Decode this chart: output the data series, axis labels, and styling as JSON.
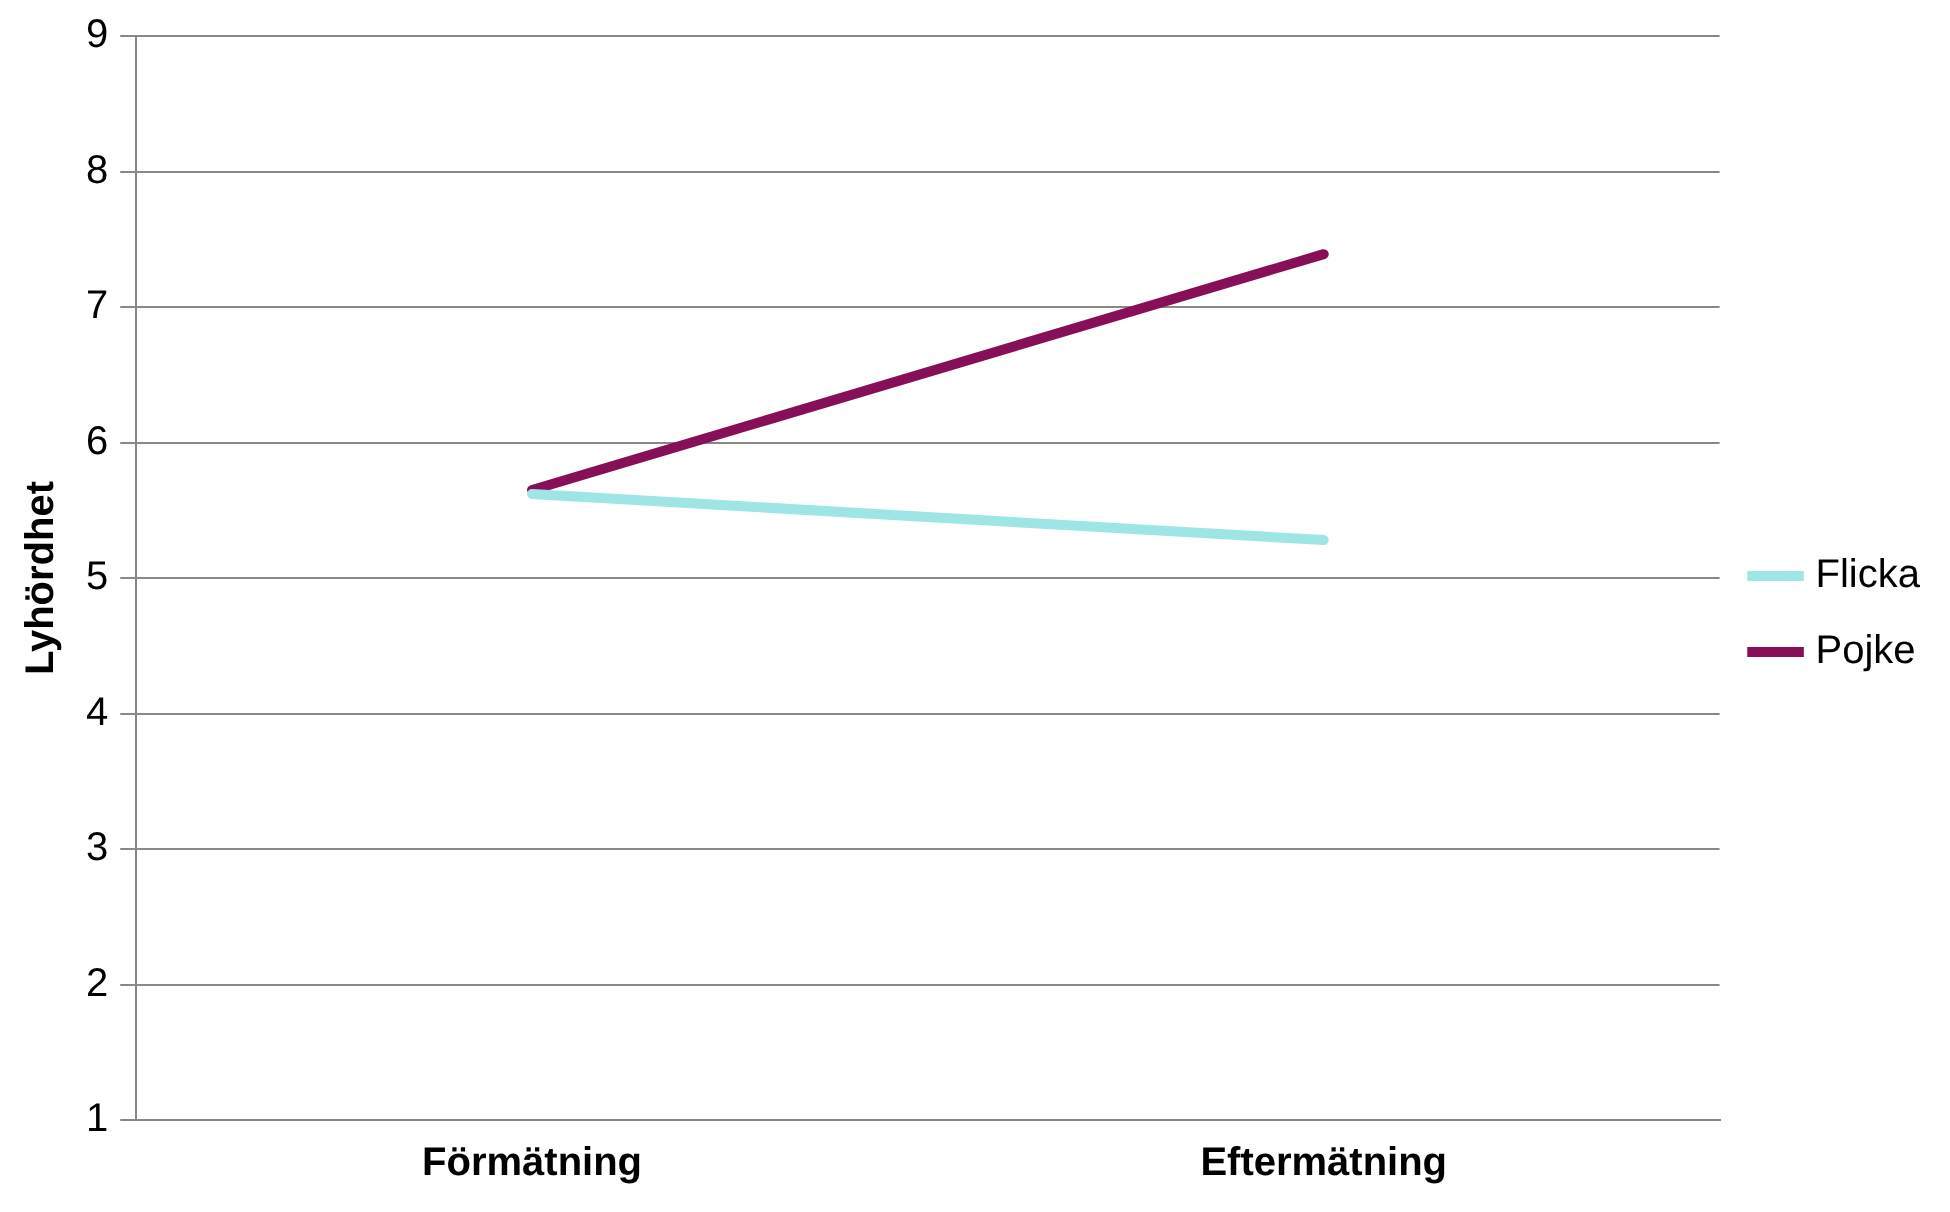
{
  "chart_data": {
    "type": "line",
    "ylabel": "Lyhördhet",
    "categories": [
      "Förmätning",
      "Eftermätning"
    ],
    "series": [
      {
        "name": "Flicka",
        "color": "#9ee5e5",
        "values": [
          5.62,
          5.28
        ]
      },
      {
        "name": "Pojke",
        "color": "#870f57",
        "values": [
          5.65,
          7.39
        ]
      }
    ],
    "ylim": [
      1,
      9
    ],
    "yticks": [
      1,
      2,
      3,
      4,
      5,
      6,
      7,
      8,
      9
    ],
    "grid": "y",
    "legend": "right",
    "marker": "none",
    "line_style": "solid"
  }
}
